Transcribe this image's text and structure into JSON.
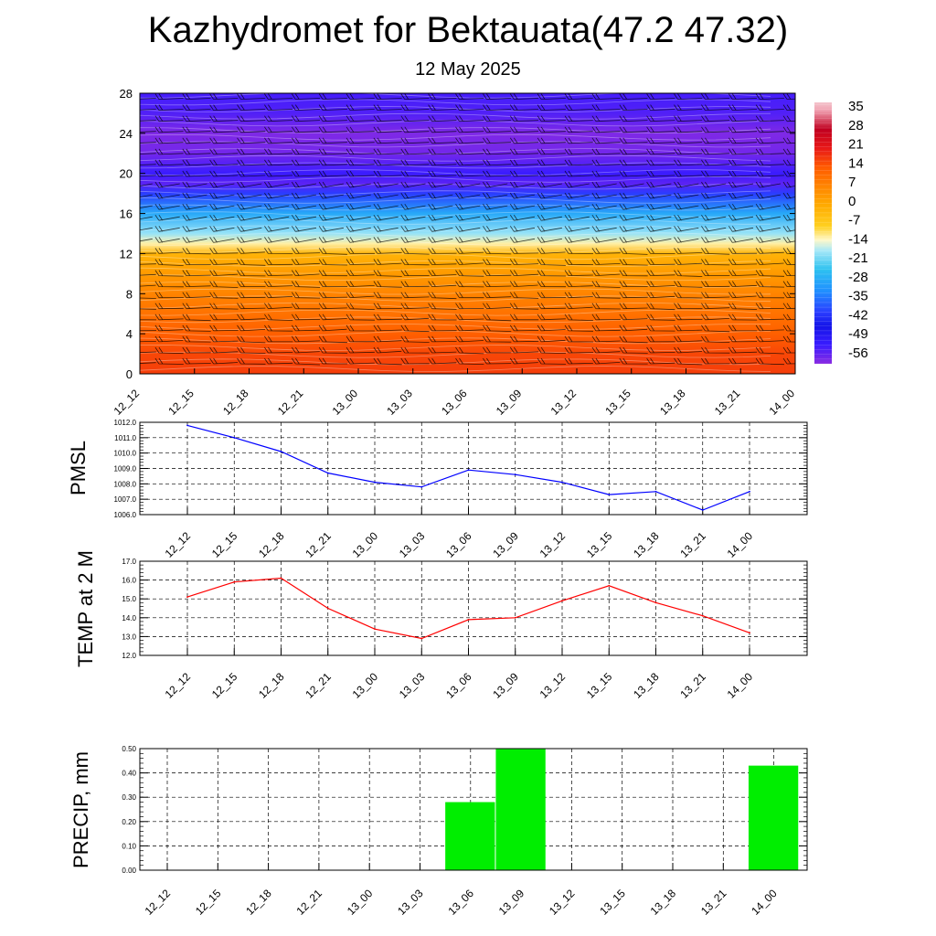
{
  "title": "Kazhydromet for Bektauata(47.2 47.32)",
  "subtitle": "12 May 2025",
  "chart_data": [
    {
      "type": "heatmap",
      "name": "cross-section",
      "x": [
        "12_12",
        "12_15",
        "12_18",
        "12_21",
        "13_00",
        "13_03",
        "13_06",
        "13_09",
        "13_12",
        "13_15",
        "13_18",
        "13_21",
        "14_00"
      ],
      "yticks": [
        0,
        4,
        8,
        12,
        16,
        20,
        24,
        28
      ],
      "ylim": [
        0,
        28
      ],
      "colorbar": {
        "labels": [
          35,
          28,
          21,
          14,
          7,
          0,
          -7,
          -14,
          -21,
          -28,
          -35,
          -42,
          -49,
          -56
        ],
        "range": [
          -59,
          38
        ]
      },
      "profile": [
        {
          "y": 0,
          "value": 17
        },
        {
          "y": 2,
          "value": 16
        },
        {
          "y": 4,
          "value": 13
        },
        {
          "y": 6,
          "value": 10
        },
        {
          "y": 8,
          "value": 7
        },
        {
          "y": 10,
          "value": 3
        },
        {
          "y": 12,
          "value": -2
        },
        {
          "y": 13,
          "value": -12
        },
        {
          "y": 14,
          "value": -18
        },
        {
          "y": 16,
          "value": -28
        },
        {
          "y": 18,
          "value": -40
        },
        {
          "y": 19,
          "value": -55
        },
        {
          "y": 20,
          "value": -52
        },
        {
          "y": 22,
          "value": -57
        },
        {
          "y": 24,
          "value": -58
        },
        {
          "y": 26,
          "value": -54
        },
        {
          "y": 28,
          "value": -53
        }
      ],
      "wind_barbs": true
    },
    {
      "type": "line",
      "name": "pmsl",
      "ylabel": "PMSL",
      "x": [
        "12_12",
        "12_15",
        "12_18",
        "12_21",
        "13_00",
        "13_03",
        "13_06",
        "13_09",
        "13_12",
        "13_15",
        "13_18",
        "13_21",
        "14_00"
      ],
      "values": [
        1011.8,
        1011.0,
        1010.1,
        1008.7,
        1008.1,
        1007.8,
        1008.9,
        1008.6,
        1008.1,
        1007.3,
        1007.5,
        1006.3,
        1007.5
      ],
      "ylim": [
        1006.0,
        1012.0
      ],
      "yticks": [
        "1006.0",
        "1007.0",
        "1008.0",
        "1009.0",
        "1010.0",
        "1011.0",
        "1012.0"
      ],
      "color": "#0000ff"
    },
    {
      "type": "line",
      "name": "temp",
      "ylabel": "TEMP at 2 M",
      "x": [
        "12_12",
        "12_15",
        "12_18",
        "12_21",
        "13_00",
        "13_03",
        "13_06",
        "13_09",
        "13_12",
        "13_15",
        "13_18",
        "13_21",
        "14_00"
      ],
      "values": [
        15.1,
        15.9,
        16.1,
        14.5,
        13.4,
        12.9,
        13.9,
        14.0,
        14.9,
        15.7,
        14.8,
        14.1,
        13.2
      ],
      "ylim": [
        12.0,
        17.0
      ],
      "yticks": [
        "12.0",
        "13.0",
        "14.0",
        "15.0",
        "16.0",
        "17.0"
      ],
      "color": "#ff0000"
    },
    {
      "type": "bar",
      "name": "precip",
      "ylabel": "PRECIP, mm",
      "x": [
        "12_12",
        "12_15",
        "12_18",
        "12_21",
        "13_00",
        "13_03",
        "13_06",
        "13_09",
        "13_12",
        "13_15",
        "13_18",
        "13_21",
        "14_00"
      ],
      "values": [
        0,
        0,
        0,
        0,
        0,
        0,
        0.28,
        0.5,
        0,
        0,
        0,
        0,
        0.43
      ],
      "ylim": [
        0,
        0.5
      ],
      "yticks": [
        "0.00",
        "0.10",
        "0.20",
        "0.30",
        "0.40",
        "0.50"
      ],
      "color": "#00ee00"
    }
  ]
}
